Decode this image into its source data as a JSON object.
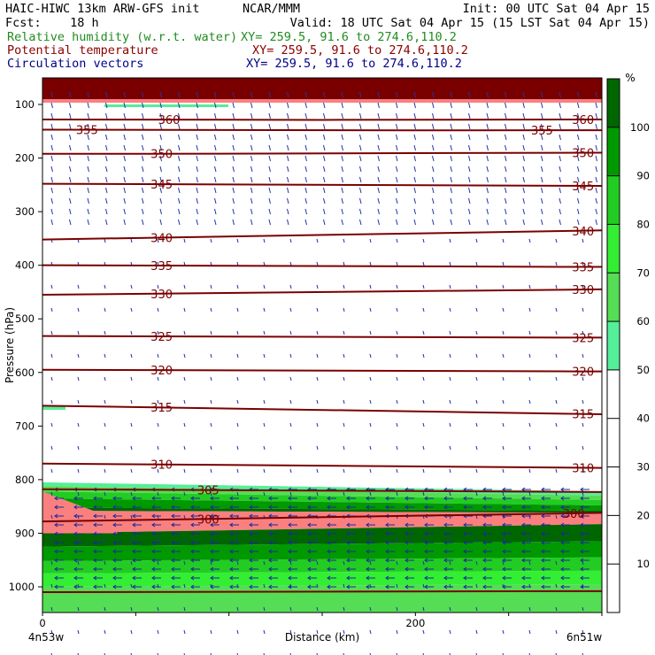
{
  "header": {
    "line1_left": "HAIC-HIWC 13km ARW-GFS init",
    "line1_center": "NCAR/MMM",
    "line1_right": "Init: 00 UTC Sat 04 Apr 15",
    "line2_left": "Fcst:    18 h",
    "line2_right": "Valid: 18 UTC Sat 04 Apr 15 (15 LST Sat 04 Apr 15)",
    "fields": [
      {
        "name": "Relative humidity (w.r.t. water)",
        "xy": "XY= 259.5, 91.6 to 274.6,110.2",
        "color": "#228B22"
      },
      {
        "name": "Potential temperature",
        "xy": "XY= 259.5, 91.6 to 274.6,110.2",
        "color": "#8B0000"
      },
      {
        "name": "Circulation vectors",
        "xy": "XY= 259.5, 91.6 to 274.6,110.2",
        "color": "#00008B"
      }
    ]
  },
  "chart_data": {
    "type": "heatmap",
    "title": "",
    "xlabel": "Distance (km)",
    "ylabel": "Pressure (hPa)",
    "xlim": [
      0,
      300
    ],
    "x_ticks": [
      0,
      200
    ],
    "x_end_labels": [
      "4n53w",
      "6n51w"
    ],
    "ylim": [
      1050,
      30
    ],
    "y_ticks": [
      100,
      200,
      300,
      400,
      500,
      600,
      700,
      800,
      900,
      1000
    ],
    "colorbar": {
      "unit": "%",
      "levels": [
        10,
        20,
        30,
        40,
        50,
        60,
        70,
        80,
        90,
        100
      ],
      "bands": [
        {
          "from": 50,
          "to": 60,
          "color": "#55EE99"
        },
        {
          "from": 60,
          "to": 70,
          "color": "#55DD55"
        },
        {
          "from": 70,
          "to": 80,
          "color": "#33EE33"
        },
        {
          "from": 80,
          "to": 90,
          "color": "#22CC22"
        },
        {
          "from": 90,
          "to": 100,
          "color": "#009900"
        },
        {
          "from": 100,
          "to": 110,
          "color": "#006600"
        }
      ],
      "top_color": "#FA8080"
    },
    "theta_contours": [
      {
        "value": 360,
        "p_left": 128,
        "p_right": 128
      },
      {
        "value": 355,
        "p_left": 147,
        "p_right": 148
      },
      {
        "value": 350,
        "p_left": 192,
        "p_right": 190
      },
      {
        "value": 345,
        "p_left": 248,
        "p_right": 252
      },
      {
        "value": 340,
        "p_left": 352,
        "p_right": 335
      },
      {
        "value": 335,
        "p_left": 400,
        "p_right": 403
      },
      {
        "value": 330,
        "p_left": 455,
        "p_right": 445
      },
      {
        "value": 325,
        "p_left": 532,
        "p_right": 535
      },
      {
        "value": 320,
        "p_left": 595,
        "p_right": 598
      },
      {
        "value": 315,
        "p_left": 662,
        "p_right": 678
      },
      {
        "value": 310,
        "p_left": 770,
        "p_right": 778
      },
      {
        "value": 305,
        "p_left": 818,
        "p_right": 823
      },
      {
        "value": 300,
        "p_left": 878,
        "p_right": 862
      }
    ],
    "label_positions": [
      {
        "value": 360,
        "x": [
          62,
          284
        ]
      },
      {
        "value": 355,
        "x": [
          18,
          262
        ]
      },
      {
        "value": 350,
        "x": [
          58,
          284
        ]
      },
      {
        "value": 345,
        "x": [
          58,
          284
        ]
      },
      {
        "value": 340,
        "x": [
          58,
          284
        ]
      },
      {
        "value": 335,
        "x": [
          58,
          284
        ]
      },
      {
        "value": 330,
        "x": [
          58,
          284
        ]
      },
      {
        "value": 325,
        "x": [
          58,
          284
        ]
      },
      {
        "value": 320,
        "x": [
          58,
          284
        ]
      },
      {
        "value": 315,
        "x": [
          58,
          284
        ]
      },
      {
        "value": 310,
        "x": [
          58,
          284
        ]
      },
      {
        "value": 305,
        "x": [
          83
        ]
      },
      {
        "value": 300,
        "x": [
          83,
          279
        ]
      }
    ]
  }
}
